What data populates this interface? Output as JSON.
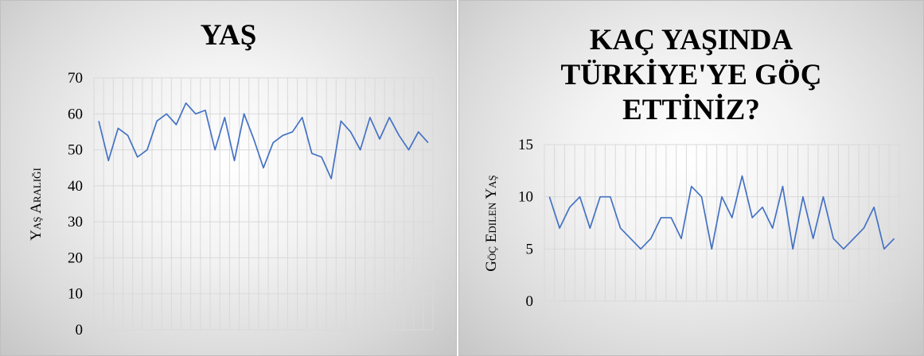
{
  "chart_data": [
    {
      "type": "line",
      "title": "YAŞ",
      "xlabel": "",
      "ylabel": "Yaş Aralığı",
      "ylim": [
        0,
        70
      ],
      "yticks": [
        0,
        10,
        20,
        30,
        40,
        50,
        60,
        70
      ],
      "grid": "vertical and horizontal",
      "color": "#4472c4",
      "values": [
        58,
        47,
        56,
        54,
        48,
        50,
        58,
        60,
        57,
        63,
        60,
        61,
        50,
        59,
        47,
        60,
        53,
        45,
        52,
        54,
        55,
        59,
        49,
        48,
        42,
        58,
        55,
        50,
        59,
        53,
        59,
        54,
        50,
        55,
        52
      ]
    },
    {
      "type": "line",
      "title": "KAÇ YAŞINDA\nTÜRKİYE'YE GÖÇ\nETTİNİZ?",
      "xlabel": "",
      "ylabel": "Göç Edilen Yaş",
      "ylim": [
        0,
        15
      ],
      "yticks": [
        0,
        5,
        10,
        15
      ],
      "grid": "vertical and horizontal",
      "color": "#4472c4",
      "values": [
        10,
        7,
        9,
        10,
        7,
        10,
        10,
        7,
        6,
        5,
        6,
        8,
        8,
        6,
        11,
        10,
        5,
        10,
        8,
        12,
        8,
        9,
        7,
        11,
        5,
        10,
        6,
        10,
        6,
        5,
        6,
        7,
        9,
        5,
        6
      ]
    }
  ]
}
